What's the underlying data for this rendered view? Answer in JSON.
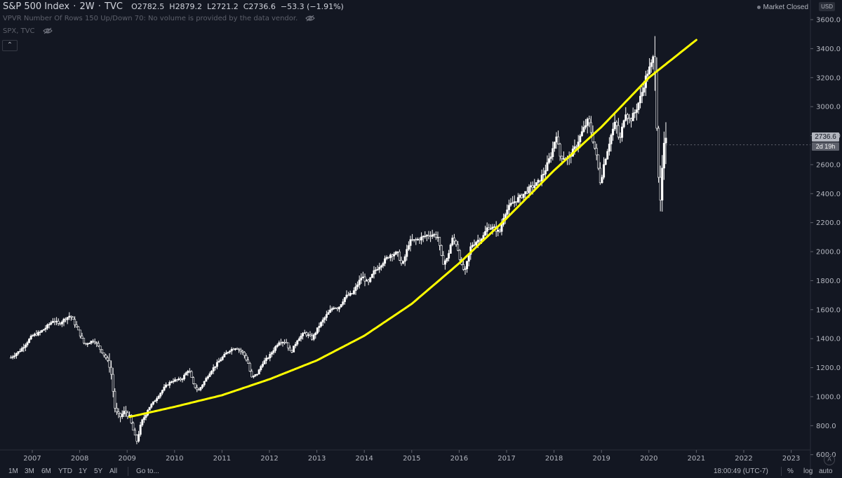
{
  "header": {
    "symbol": "S&P 500 Index",
    "interval": "2W",
    "exchange": "TVC",
    "ohlc": [
      {
        "k": "O",
        "v": "2782.5"
      },
      {
        "k": "H",
        "v": "2879.2"
      },
      {
        "k": "L",
        "v": "2721.2"
      },
      {
        "k": "C",
        "v": "2736.6"
      }
    ],
    "change": "−53.3 (−1.91%)"
  },
  "indicators": {
    "vpvr": "VPVR Number Of Rows 150 Up/Down 70: No volume is provided by the data vendor.",
    "compare": "SPX, TVC"
  },
  "collapse_symbol": "⌃",
  "market_status": "Market Closed",
  "currency": "USD",
  "price_label": "2736.6",
  "countdown_label": "2d 19h",
  "auto_scale_symbol": "A",
  "bottom_bar": {
    "ranges": [
      "1M",
      "3M",
      "6M",
      "YTD",
      "1Y",
      "5Y",
      "All"
    ],
    "goto": "Go to...",
    "clock": "18:00:49 (UTC-7)",
    "percent": "%",
    "log": "log",
    "auto": "auto"
  },
  "colors": {
    "background": "#131722",
    "candle": "#ffffff",
    "trend_curve": "#ffff00",
    "axis_text": "#b2b5be"
  },
  "chart_data": {
    "type": "candlestick",
    "ylim": [
      580,
      3650
    ],
    "y_ticks": [
      600,
      800,
      1000,
      1200,
      1400,
      1600,
      1800,
      2000,
      2200,
      2400,
      2600,
      2800,
      3000,
      3200,
      3400,
      3600
    ],
    "y_tick_labels": [
      "600.0",
      "800.0",
      "1000.0",
      "1200.0",
      "1400.0",
      "1600.0",
      "1800.0",
      "2000.0",
      "2200.0",
      "2400.0",
      "2600.0",
      "2800.0",
      "3000.0",
      "3200.0",
      "3400.0",
      "3600.0"
    ],
    "x_range": [
      2006.55,
      2023.3
    ],
    "x_ticks": [
      2007,
      2008,
      2009,
      2010,
      2011,
      2012,
      2013,
      2014,
      2015,
      2016,
      2017,
      2018,
      2019,
      2020,
      2021,
      2022,
      2023
    ],
    "x_tick_labels": [
      "2007",
      "2008",
      "2009",
      "2010",
      "2011",
      "2012",
      "2013",
      "2014",
      "2015",
      "2016",
      "2017",
      "2018",
      "2019",
      "2020",
      "2021",
      "2022",
      "2023"
    ],
    "price_path": [
      [
        2006.55,
        1270
      ],
      [
        2006.75,
        1320
      ],
      [
        2007.0,
        1420
      ],
      [
        2007.15,
        1440
      ],
      [
        2007.3,
        1480
      ],
      [
        2007.45,
        1530
      ],
      [
        2007.55,
        1500
      ],
      [
        2007.7,
        1540
      ],
      [
        2007.8,
        1560
      ],
      [
        2007.95,
        1470
      ],
      [
        2008.1,
        1360
      ],
      [
        2008.3,
        1390
      ],
      [
        2008.45,
        1320
      ],
      [
        2008.55,
        1270
      ],
      [
        2008.65,
        1200
      ],
      [
        2008.75,
        900
      ],
      [
        2008.85,
        860
      ],
      [
        2008.95,
        900
      ],
      [
        2009.05,
        860
      ],
      [
        2009.15,
        740
      ],
      [
        2009.2,
        690
      ],
      [
        2009.3,
        820
      ],
      [
        2009.45,
        920
      ],
      [
        2009.6,
        980
      ],
      [
        2009.8,
        1070
      ],
      [
        2009.95,
        1110
      ],
      [
        2010.15,
        1120
      ],
      [
        2010.3,
        1190
      ],
      [
        2010.4,
        1080
      ],
      [
        2010.5,
        1040
      ],
      [
        2010.6,
        1090
      ],
      [
        2010.75,
        1170
      ],
      [
        2010.95,
        1250
      ],
      [
        2011.15,
        1320
      ],
      [
        2011.3,
        1340
      ],
      [
        2011.45,
        1300
      ],
      [
        2011.55,
        1230
      ],
      [
        2011.62,
        1130
      ],
      [
        2011.75,
        1160
      ],
      [
        2011.85,
        1230
      ],
      [
        2012.0,
        1280
      ],
      [
        2012.2,
        1380
      ],
      [
        2012.35,
        1380
      ],
      [
        2012.45,
        1300
      ],
      [
        2012.6,
        1400
      ],
      [
        2012.75,
        1440
      ],
      [
        2012.9,
        1400
      ],
      [
        2013.05,
        1490
      ],
      [
        2013.2,
        1560
      ],
      [
        2013.35,
        1620
      ],
      [
        2013.45,
        1610
      ],
      [
        2013.6,
        1690
      ],
      [
        2013.75,
        1710
      ],
      [
        2013.95,
        1830
      ],
      [
        2014.08,
        1780
      ],
      [
        2014.2,
        1860
      ],
      [
        2014.4,
        1930
      ],
      [
        2014.55,
        1980
      ],
      [
        2014.7,
        1990
      ],
      [
        2014.8,
        1900
      ],
      [
        2014.95,
        2070
      ],
      [
        2015.1,
        2080
      ],
      [
        2015.3,
        2110
      ],
      [
        2015.45,
        2120
      ],
      [
        2015.55,
        2100
      ],
      [
        2015.65,
        1920
      ],
      [
        2015.75,
        1950
      ],
      [
        2015.85,
        2090
      ],
      [
        2015.95,
        2050
      ],
      [
        2016.05,
        1900
      ],
      [
        2016.12,
        1860
      ],
      [
        2016.25,
        2040
      ],
      [
        2016.4,
        2080
      ],
      [
        2016.5,
        2100
      ],
      [
        2016.6,
        2170
      ],
      [
        2016.75,
        2160
      ],
      [
        2016.85,
        2130
      ],
      [
        2016.95,
        2260
      ],
      [
        2017.1,
        2330
      ],
      [
        2017.3,
        2380
      ],
      [
        2017.5,
        2440
      ],
      [
        2017.65,
        2470
      ],
      [
        2017.8,
        2550
      ],
      [
        2017.95,
        2680
      ],
      [
        2018.05,
        2810
      ],
      [
        2018.12,
        2660
      ],
      [
        2018.3,
        2640
      ],
      [
        2018.45,
        2720
      ],
      [
        2018.6,
        2830
      ],
      [
        2018.72,
        2910
      ],
      [
        2018.8,
        2800
      ],
      [
        2018.9,
        2650
      ],
      [
        2018.98,
        2470
      ],
      [
        2019.05,
        2600
      ],
      [
        2019.2,
        2800
      ],
      [
        2019.3,
        2900
      ],
      [
        2019.38,
        2750
      ],
      [
        2019.5,
        2970
      ],
      [
        2019.6,
        2900
      ],
      [
        2019.72,
        2970
      ],
      [
        2019.85,
        3090
      ],
      [
        2019.95,
        3220
      ],
      [
        2020.05,
        3290
      ],
      [
        2020.12,
        3370
      ],
      [
        2020.16,
        2950
      ],
      [
        2020.21,
        2480
      ],
      [
        2020.24,
        2300
      ],
      [
        2020.28,
        2550
      ],
      [
        2020.33,
        2750
      ],
      [
        2020.36,
        2740
      ]
    ],
    "trend_curve": [
      [
        2009.05,
        860
      ],
      [
        2010.0,
        930
      ],
      [
        2011.0,
        1010
      ],
      [
        2012.0,
        1120
      ],
      [
        2013.0,
        1250
      ],
      [
        2014.0,
        1420
      ],
      [
        2015.0,
        1640
      ],
      [
        2016.0,
        1920
      ],
      [
        2017.0,
        2230
      ],
      [
        2018.0,
        2560
      ],
      [
        2019.0,
        2860
      ],
      [
        2020.0,
        3200
      ],
      [
        2021.0,
        3460
      ]
    ]
  }
}
